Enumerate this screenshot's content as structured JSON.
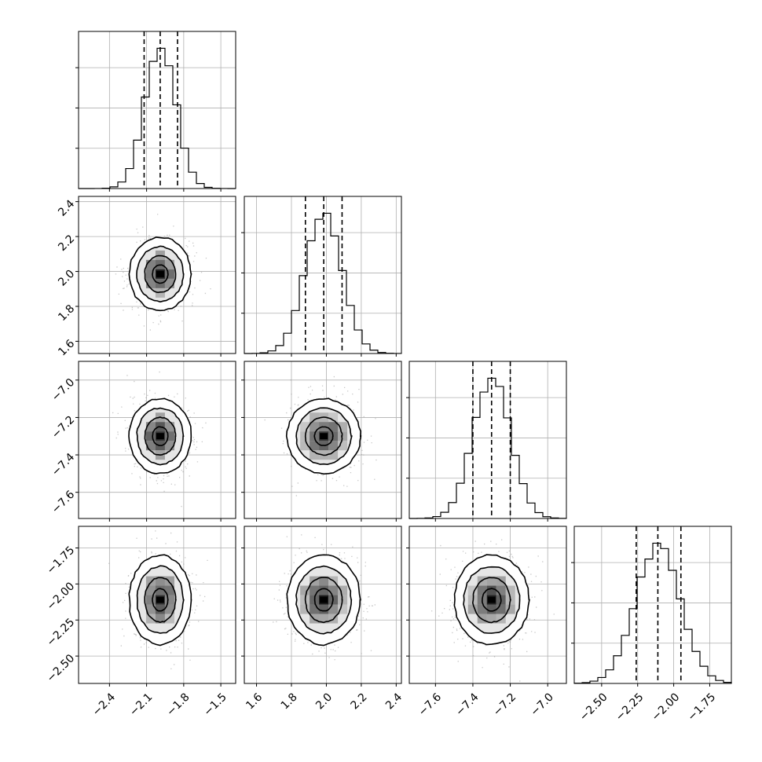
{
  "chart_data": {
    "type": "corner",
    "title": "",
    "n_params": 4,
    "params": [
      {
        "label": "",
        "mean": -1.99,
        "sd": 0.125,
        "range": [
          -2.65,
          -1.38
        ],
        "q16": -2.12,
        "q50": -1.99,
        "q84": -1.85,
        "ticks": [
          -2.4,
          -2.1,
          -1.8,
          -1.5
        ],
        "tick_labels": [
          "−2.4",
          "−2.1",
          "−1.8",
          "−1.5"
        ]
      },
      {
        "label": "",
        "mean": 1.985,
        "sd": 0.105,
        "range": [
          1.53,
          2.43
        ],
        "q16": 1.88,
        "q50": 1.985,
        "q84": 2.09,
        "ticks": [
          1.6,
          1.8,
          2.0,
          2.2,
          2.4
        ],
        "tick_labels": [
          "1.6",
          "1.8",
          "2.0",
          "2.2",
          "2.4"
        ]
      },
      {
        "label": "",
        "mean": -7.3,
        "sd": 0.1,
        "range": [
          -7.74,
          -6.9
        ],
        "q16": -7.4,
        "q50": -7.3,
        "q84": -7.2,
        "ticks": [
          -7.6,
          -7.4,
          -7.2,
          -7.0
        ],
        "tick_labels": [
          "−7.6",
          "−7.4",
          "−7.2",
          "−7.0"
        ]
      },
      {
        "label": "",
        "mean": -2.11,
        "sd": 0.155,
        "range": [
          -2.69,
          -1.6
        ],
        "q16": -2.26,
        "q50": -2.11,
        "q84": -1.95,
        "ticks": [
          -2.5,
          -2.25,
          -2.0,
          -1.75
        ],
        "tick_labels": [
          "−2.50",
          "−2.25",
          "−2.00",
          "−1.75"
        ]
      }
    ],
    "histogram_bins": 20,
    "quantiles": [
      0.16,
      0.5,
      0.84
    ],
    "contour_levels_sigma": [
      0.5,
      1.0,
      1.5,
      2.0
    ],
    "grid": true,
    "colors": {
      "line": "#000000",
      "points": "#9a9a9a",
      "grid": "#b0b0b0"
    }
  }
}
